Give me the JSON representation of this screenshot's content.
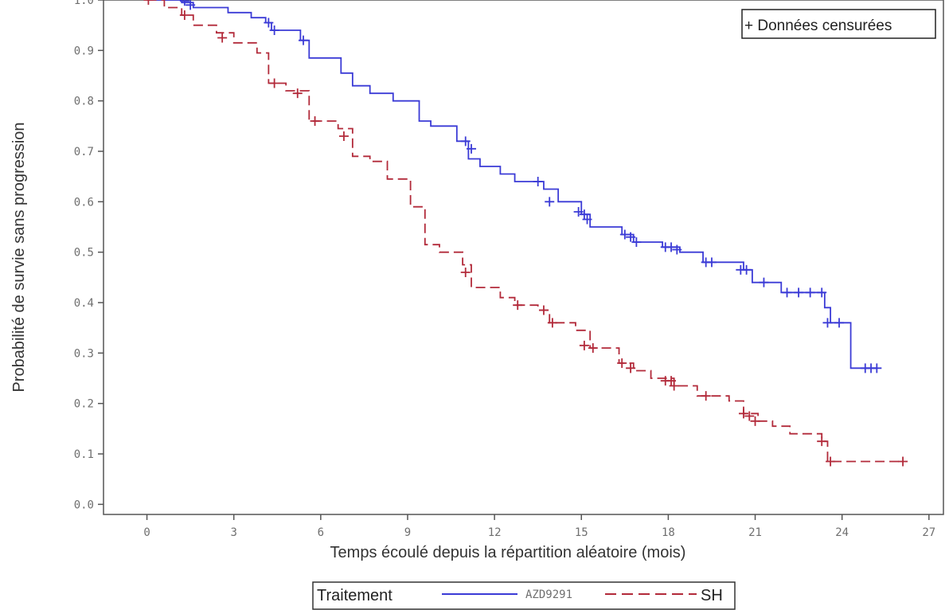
{
  "chart_data": {
    "type": "line",
    "step": true,
    "xlabel": "Temps écoulé depuis la répartition aléatoire (mois)",
    "ylabel": "Probabilité de survie sans progression",
    "xlim": [
      -1.5,
      27.5
    ],
    "ylim": [
      -0.02,
      1.0
    ],
    "xticks": [
      "0",
      "3",
      "6",
      "9",
      "12",
      "15",
      "18",
      "21",
      "24",
      "27"
    ],
    "yticks": [
      "0.0",
      "0.1",
      "0.2",
      "0.3",
      "0.4",
      "0.5",
      "0.6",
      "0.7",
      "0.8",
      "0.9",
      "1.0"
    ],
    "censored_note": "+ Données censurées",
    "legend": {
      "title": "Traitement",
      "position": "bottom-center"
    },
    "series": [
      {
        "name": "AZD9291",
        "color": "#3b3bd6",
        "style": "solid",
        "x": [
          0,
          1.2,
          1.6,
          2.8,
          3.6,
          4.1,
          4.3,
          5.3,
          5.6,
          6.7,
          7.1,
          7.7,
          8.5,
          9.4,
          9.8,
          10.7,
          11.1,
          11.5,
          12.2,
          12.7,
          13.7,
          14.2,
          15.0,
          15.3,
          16.4,
          16.8,
          17.8,
          18.4,
          19.2,
          20.6,
          20.9,
          21.9,
          23.4,
          23.6,
          24.3,
          25.2
        ],
        "y": [
          1.0,
          0.995,
          0.985,
          0.975,
          0.965,
          0.955,
          0.94,
          0.92,
          0.885,
          0.855,
          0.83,
          0.815,
          0.8,
          0.76,
          0.75,
          0.72,
          0.685,
          0.67,
          0.655,
          0.64,
          0.625,
          0.6,
          0.575,
          0.55,
          0.535,
          0.52,
          0.51,
          0.5,
          0.48,
          0.465,
          0.44,
          0.42,
          0.39,
          0.36,
          0.27,
          0.27
        ],
        "censored": [
          {
            "x": 1.3,
            "y": 0.998
          },
          {
            "x": 1.5,
            "y": 0.99
          },
          {
            "x": 4.2,
            "y": 0.955
          },
          {
            "x": 4.4,
            "y": 0.94
          },
          {
            "x": 5.4,
            "y": 0.92
          },
          {
            "x": 11.0,
            "y": 0.72
          },
          {
            "x": 11.2,
            "y": 0.705
          },
          {
            "x": 13.5,
            "y": 0.64
          },
          {
            "x": 13.9,
            "y": 0.6
          },
          {
            "x": 14.9,
            "y": 0.58
          },
          {
            "x": 15.1,
            "y": 0.575
          },
          {
            "x": 15.2,
            "y": 0.565
          },
          {
            "x": 16.5,
            "y": 0.535
          },
          {
            "x": 16.7,
            "y": 0.53
          },
          {
            "x": 16.9,
            "y": 0.52
          },
          {
            "x": 17.9,
            "y": 0.51
          },
          {
            "x": 18.1,
            "y": 0.51
          },
          {
            "x": 18.3,
            "y": 0.505
          },
          {
            "x": 19.3,
            "y": 0.48
          },
          {
            "x": 19.5,
            "y": 0.48
          },
          {
            "x": 20.5,
            "y": 0.465
          },
          {
            "x": 20.7,
            "y": 0.465
          },
          {
            "x": 21.3,
            "y": 0.44
          },
          {
            "x": 22.1,
            "y": 0.42
          },
          {
            "x": 22.5,
            "y": 0.42
          },
          {
            "x": 22.9,
            "y": 0.42
          },
          {
            "x": 23.3,
            "y": 0.42
          },
          {
            "x": 23.5,
            "y": 0.36
          },
          {
            "x": 23.9,
            "y": 0.36
          },
          {
            "x": 24.8,
            "y": 0.27
          },
          {
            "x": 25.0,
            "y": 0.27
          },
          {
            "x": 25.2,
            "y": 0.27
          }
        ]
      },
      {
        "name": "SH",
        "color": "#b22a3a",
        "style": "dashed",
        "x": [
          0,
          0.6,
          1.2,
          1.6,
          2.4,
          3.0,
          3.8,
          4.2,
          4.8,
          5.6,
          6.6,
          7.1,
          7.7,
          8.3,
          9.1,
          9.6,
          10.1,
          10.9,
          11.2,
          12.2,
          12.7,
          13.5,
          13.9,
          14.8,
          15.3,
          16.3,
          16.8,
          17.4,
          18.2,
          19.0,
          20.1,
          20.6,
          21.1,
          21.6,
          22.2,
          23.3,
          23.5,
          26.1
        ],
        "y": [
          1.0,
          0.985,
          0.97,
          0.95,
          0.935,
          0.915,
          0.895,
          0.835,
          0.82,
          0.76,
          0.745,
          0.69,
          0.68,
          0.645,
          0.59,
          0.515,
          0.5,
          0.475,
          0.43,
          0.41,
          0.395,
          0.385,
          0.36,
          0.345,
          0.31,
          0.28,
          0.265,
          0.25,
          0.235,
          0.215,
          0.205,
          0.18,
          0.165,
          0.155,
          0.14,
          0.125,
          0.085,
          0.085
        ],
        "censored": [
          {
            "x": 0.05,
            "y": 1.0
          },
          {
            "x": 1.3,
            "y": 0.97
          },
          {
            "x": 2.6,
            "y": 0.925
          },
          {
            "x": 4.4,
            "y": 0.835
          },
          {
            "x": 5.2,
            "y": 0.815
          },
          {
            "x": 5.8,
            "y": 0.76
          },
          {
            "x": 6.8,
            "y": 0.73
          },
          {
            "x": 11.0,
            "y": 0.46
          },
          {
            "x": 12.8,
            "y": 0.395
          },
          {
            "x": 13.7,
            "y": 0.385
          },
          {
            "x": 14.0,
            "y": 0.36
          },
          {
            "x": 15.1,
            "y": 0.315
          },
          {
            "x": 15.4,
            "y": 0.31
          },
          {
            "x": 16.4,
            "y": 0.28
          },
          {
            "x": 16.7,
            "y": 0.27
          },
          {
            "x": 17.9,
            "y": 0.245
          },
          {
            "x": 18.1,
            "y": 0.245
          },
          {
            "x": 18.2,
            "y": 0.235
          },
          {
            "x": 19.3,
            "y": 0.215
          },
          {
            "x": 20.6,
            "y": 0.18
          },
          {
            "x": 20.8,
            "y": 0.175
          },
          {
            "x": 21.0,
            "y": 0.165
          },
          {
            "x": 23.3,
            "y": 0.125
          },
          {
            "x": 23.6,
            "y": 0.085
          },
          {
            "x": 26.1,
            "y": 0.085
          }
        ]
      }
    ]
  }
}
